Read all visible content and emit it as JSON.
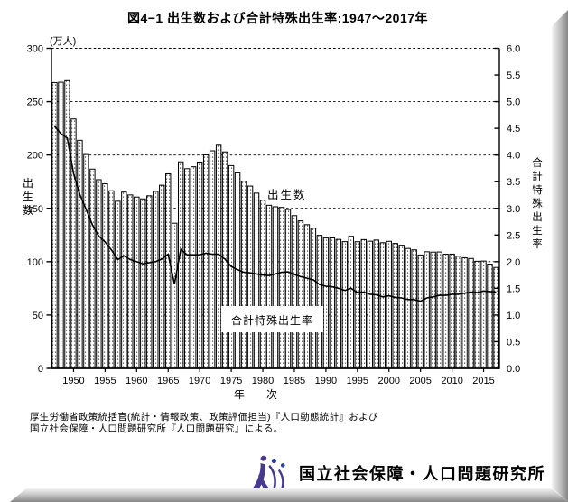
{
  "page": {
    "title": "図4−1 出生数および合計特殊出生率:1947〜2017年"
  },
  "chart_data": {
    "type": "bar+line",
    "title": "図4−1 出生数および合計特殊出生率:1947〜2017年",
    "categories": [
      1947,
      1948,
      1949,
      1950,
      1951,
      1952,
      1953,
      1954,
      1955,
      1956,
      1957,
      1958,
      1959,
      1960,
      1961,
      1962,
      1963,
      1964,
      1965,
      1966,
      1967,
      1968,
      1969,
      1970,
      1971,
      1972,
      1973,
      1974,
      1975,
      1976,
      1977,
      1978,
      1979,
      1980,
      1981,
      1982,
      1983,
      1984,
      1985,
      1986,
      1987,
      1988,
      1989,
      1990,
      1991,
      1992,
      1993,
      1994,
      1995,
      1996,
      1997,
      1998,
      1999,
      2000,
      2001,
      2002,
      2003,
      2004,
      2005,
      2006,
      2007,
      2008,
      2009,
      2010,
      2011,
      2012,
      2013,
      2014,
      2015,
      2016,
      2017
    ],
    "series": [
      {
        "name": "出生数",
        "type": "bar",
        "axis": "left",
        "unit": "万人",
        "values": [
          267.9,
          268.2,
          269.7,
          233.8,
          213.8,
          200.5,
          186.8,
          176.9,
          173.1,
          166.5,
          156.7,
          165.3,
          162.6,
          160.6,
          158.9,
          161.8,
          165.9,
          171.7,
          182.4,
          136.1,
          193.6,
          187.2,
          189.0,
          193.4,
          200.1,
          203.9,
          209.2,
          202.9,
          190.1,
          183.3,
          175.5,
          170.9,
          164.3,
          157.7,
          152.9,
          151.5,
          150.9,
          148.9,
          143.2,
          138.3,
          134.7,
          131.4,
          124.7,
          122.2,
          122.3,
          120.9,
          118.8,
          123.8,
          118.7,
          120.7,
          119.2,
          120.3,
          117.8,
          119.1,
          117.1,
          115.4,
          112.4,
          111.1,
          106.3,
          109.3,
          109.0,
          109.1,
          107.0,
          107.1,
          105.1,
          103.7,
          103.0,
          100.4,
          100.6,
          97.7,
          94.6
        ]
      },
      {
        "name": "合計特殊出生率",
        "type": "line",
        "axis": "right",
        "values": [
          4.54,
          4.4,
          4.32,
          3.65,
          3.26,
          2.98,
          2.69,
          2.48,
          2.37,
          2.22,
          2.04,
          2.11,
          2.04,
          2.0,
          1.96,
          1.98,
          2.0,
          2.05,
          2.14,
          1.58,
          2.23,
          2.13,
          2.13,
          2.13,
          2.16,
          2.14,
          2.14,
          2.05,
          1.91,
          1.85,
          1.8,
          1.79,
          1.77,
          1.75,
          1.74,
          1.77,
          1.8,
          1.81,
          1.76,
          1.72,
          1.69,
          1.66,
          1.57,
          1.54,
          1.53,
          1.5,
          1.46,
          1.5,
          1.42,
          1.43,
          1.39,
          1.38,
          1.34,
          1.36,
          1.33,
          1.32,
          1.29,
          1.29,
          1.26,
          1.32,
          1.34,
          1.37,
          1.37,
          1.39,
          1.39,
          1.41,
          1.43,
          1.42,
          1.45,
          1.44,
          1.43
        ]
      }
    ],
    "left_axis": {
      "title": "出生数",
      "unit_label": "(万人)",
      "min": 0,
      "max": 300,
      "tick_interval": 50,
      "tick_labels": [
        "0",
        "50",
        "100",
        "150",
        "200",
        "250",
        "300"
      ]
    },
    "right_axis": {
      "title": "合計特殊出生率",
      "min": 0,
      "max": 6,
      "tick_interval": 0.5,
      "tick_labels": [
        "0.0",
        "0.5",
        "1.0",
        "1.5",
        "2.0",
        "2.5",
        "3.0",
        "3.5",
        "4.0",
        "4.5",
        "5.0",
        "5.5",
        "6.0"
      ]
    },
    "x_axis": {
      "title": "年　　次",
      "tick_labels": [
        "1950",
        "1955",
        "1960",
        "1965",
        "1970",
        "1975",
        "1980",
        "1985",
        "1990",
        "1995",
        "2000",
        "2005",
        "2010",
        "2015"
      ]
    },
    "grid": "horizontal dashed lines every 50 (left scale) / 0.5 (right scale)",
    "legend_position": "inline annotations",
    "annotations": [
      {
        "label": "出生数",
        "boxed": false
      },
      {
        "label": "合計特殊出生率",
        "boxed": true
      }
    ]
  },
  "source": {
    "line1": "厚生労働省政策統括官(統計・情報政策、政策評価担当)『人口動態統計』および",
    "line2": "国立社会保障・人口問題研究所『人口問題研究』による。"
  },
  "footer": {
    "institute_name": "国立社会保障・人口問題研究所"
  },
  "colors": {
    "bar_fill": "#ffffff",
    "bar_stroke": "#000000",
    "line": "#000000",
    "text": "#000000",
    "logo_purple": "#46398e",
    "logo_blue": "#2e3f9e",
    "shadow_light": "#f2f2f2",
    "shadow_dark": "#888888"
  }
}
